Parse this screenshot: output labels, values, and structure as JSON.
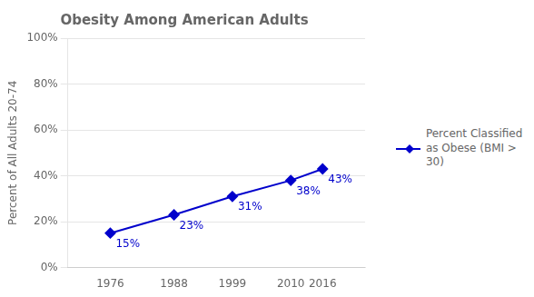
{
  "chart_data": {
    "type": "line",
    "title": "Obesity Among American Adults",
    "ylabel": "Percent of All Adults 20-74",
    "x": [
      1976,
      1988,
      1999,
      2010,
      2016
    ],
    "series": [
      {
        "name": "Percent Classified\nas Obese (BMI > 30)",
        "color": "#0000CC",
        "marker": "diamond",
        "values": [
          15,
          23,
          31,
          38,
          43
        ],
        "value_labels": [
          "15%",
          "23%",
          "31%",
          "38%",
          "43%"
        ]
      }
    ],
    "xlim": [
      1968,
      2024
    ],
    "xticks": [
      1976,
      1988,
      1999,
      2010,
      2016
    ],
    "ylim": [
      0,
      100
    ],
    "yticks": [
      {
        "value": 0,
        "label": "0%"
      },
      {
        "value": 20,
        "label": "20%"
      },
      {
        "value": 40,
        "label": "40%"
      },
      {
        "value": 60,
        "label": "60%"
      },
      {
        "value": 80,
        "label": "80%"
      },
      {
        "value": 100,
        "label": "100%"
      }
    ],
    "grid": "y",
    "legend": "right",
    "data_labels": true
  }
}
